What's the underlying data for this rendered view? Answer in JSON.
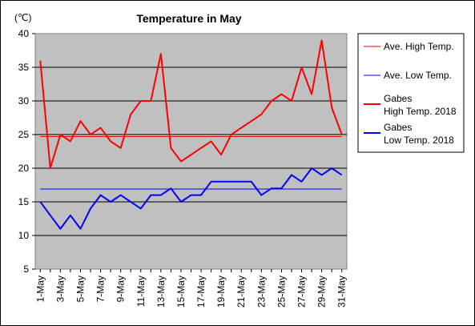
{
  "chart_data": {
    "type": "line",
    "title": "Temperature in May",
    "unit_label": "(℃)",
    "ylim": [
      5,
      40
    ],
    "yticks": [
      5,
      10,
      15,
      20,
      25,
      30,
      35,
      40
    ],
    "grid": true,
    "legend_placement": "right",
    "x": [
      "1-May",
      "2-May",
      "3-May",
      "4-May",
      "5-May",
      "6-May",
      "7-May",
      "8-May",
      "9-May",
      "10-May",
      "11-May",
      "12-May",
      "13-May",
      "14-May",
      "15-May",
      "16-May",
      "17-May",
      "18-May",
      "19-May",
      "20-May",
      "21-May",
      "22-May",
      "23-May",
      "24-May",
      "25-May",
      "26-May",
      "27-May",
      "28-May",
      "29-May",
      "30-May",
      "31-May"
    ],
    "xtick_labels": [
      "1-May",
      "3-May",
      "5-May",
      "7-May",
      "9-May",
      "11-May",
      "13-May",
      "15-May",
      "17-May",
      "19-May",
      "21-May",
      "23-May",
      "25-May",
      "27-May",
      "29-May",
      "31-May"
    ],
    "series": [
      {
        "name": "Ave. High Temp.",
        "color": "#ff0000",
        "style": "thin",
        "values": [
          24.7,
          24.7,
          24.7,
          24.7,
          24.7,
          24.7,
          24.7,
          24.7,
          24.7,
          24.7,
          24.7,
          24.7,
          24.7,
          24.7,
          24.7,
          24.7,
          24.7,
          24.7,
          24.7,
          24.7,
          24.7,
          24.7,
          24.7,
          24.7,
          24.7,
          24.7,
          24.7,
          24.7,
          24.7,
          24.7,
          24.7
        ]
      },
      {
        "name": "Ave. Low Temp.",
        "color": "#0000ff",
        "style": "thin",
        "values": [
          16.9,
          16.9,
          16.9,
          16.9,
          16.9,
          16.9,
          16.9,
          16.9,
          16.9,
          16.9,
          16.9,
          16.9,
          16.9,
          16.9,
          16.9,
          16.9,
          16.9,
          16.9,
          16.9,
          16.9,
          16.9,
          16.9,
          16.9,
          16.9,
          16.9,
          16.9,
          16.9,
          16.9,
          16.9,
          16.9,
          16.9
        ]
      },
      {
        "name": "Gabes High Temp. 2018",
        "name_lines": [
          "Gabes",
          "High Temp. 2018"
        ],
        "color": "#ff0000",
        "style": "thick",
        "values": [
          36,
          20,
          25,
          24,
          27,
          25,
          26,
          24,
          23,
          28,
          30,
          30,
          37,
          23,
          21,
          22,
          23,
          24,
          22,
          25,
          26,
          27,
          28,
          30,
          31,
          30,
          35,
          31,
          39,
          29,
          25
        ]
      },
      {
        "name": "Gabes Low Temp. 2018",
        "name_lines": [
          "Gabes",
          "Low Temp. 2018"
        ],
        "color": "#0000ff",
        "style": "thick",
        "values": [
          15,
          13,
          11,
          13,
          11,
          14,
          16,
          15,
          16,
          15,
          14,
          16,
          16,
          17,
          15,
          16,
          16,
          18,
          18,
          18,
          18,
          18,
          16,
          17,
          17,
          19,
          18,
          20,
          19,
          20,
          19
        ]
      }
    ]
  }
}
